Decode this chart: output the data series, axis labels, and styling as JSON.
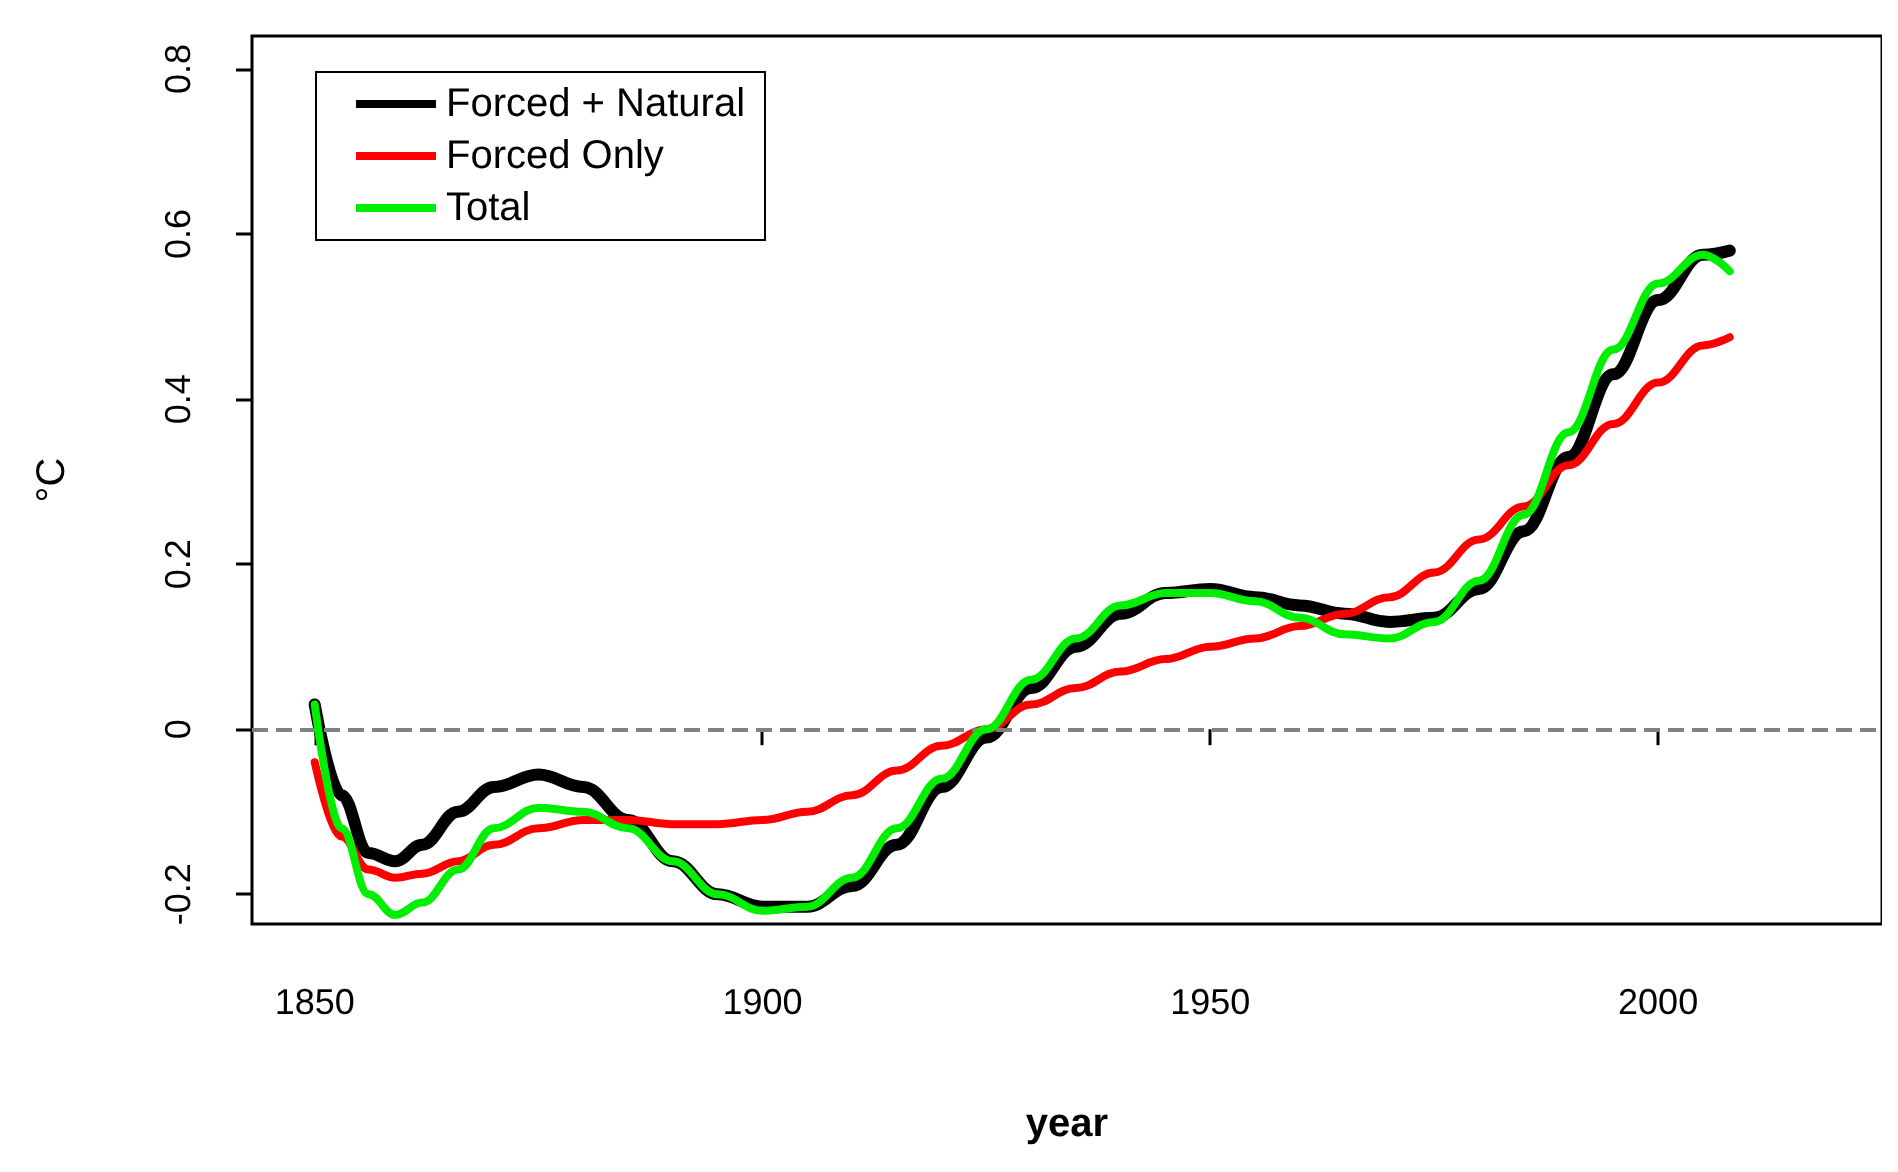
{
  "chart_data": {
    "type": "line",
    "xlabel": "year",
    "ylabel": "°C",
    "xlim": [
      1843,
      2025
    ],
    "xticks": [
      1850,
      1900,
      1950,
      2000
    ],
    "ylim": [
      -0.236,
      0.84
    ],
    "yticks": [
      -0.2,
      0,
      0.2,
      0.4,
      0.6,
      0.8
    ],
    "grid": false,
    "legend": "top left",
    "marker": "none",
    "line_style": "solid",
    "x": [
      1850,
      1853,
      1856,
      1859,
      1862,
      1866,
      1870,
      1875,
      1880,
      1885,
      1890,
      1895,
      1900,
      1905,
      1910,
      1915,
      1920,
      1925,
      1930,
      1935,
      1940,
      1945,
      1950,
      1955,
      1960,
      1965,
      1970,
      1975,
      1980,
      1985,
      1990,
      1995,
      2000,
      2005,
      2008
    ],
    "series": [
      {
        "name": "Forced + Natural",
        "color": "#000000",
        "values": [
          0.03,
          -0.08,
          -0.15,
          -0.16,
          -0.14,
          -0.1,
          -0.07,
          -0.055,
          -0.07,
          -0.11,
          -0.16,
          -0.2,
          -0.215,
          -0.215,
          -0.19,
          -0.14,
          -0.07,
          -0.01,
          0.05,
          0.1,
          0.14,
          0.165,
          0.17,
          0.16,
          0.15,
          0.14,
          0.13,
          0.135,
          0.17,
          0.24,
          0.33,
          0.43,
          0.52,
          0.575,
          0.58
        ]
      },
      {
        "name": "Forced Only",
        "color": "#ff0000",
        "values": [
          -0.04,
          -0.13,
          -0.17,
          -0.18,
          -0.175,
          -0.16,
          -0.14,
          -0.12,
          -0.11,
          -0.11,
          -0.115,
          -0.115,
          -0.11,
          -0.1,
          -0.08,
          -0.05,
          -0.02,
          0.0,
          0.03,
          0.05,
          0.07,
          0.085,
          0.1,
          0.11,
          0.125,
          0.14,
          0.16,
          0.19,
          0.23,
          0.27,
          0.32,
          0.37,
          0.42,
          0.465,
          0.475
        ]
      },
      {
        "name": "Total",
        "color": "#00ee00",
        "values": [
          0.03,
          -0.12,
          -0.2,
          -0.225,
          -0.21,
          -0.17,
          -0.12,
          -0.095,
          -0.1,
          -0.12,
          -0.16,
          -0.2,
          -0.22,
          -0.215,
          -0.18,
          -0.12,
          -0.06,
          0.0,
          0.06,
          0.11,
          0.15,
          0.165,
          0.165,
          0.155,
          0.135,
          0.115,
          0.11,
          0.13,
          0.18,
          0.26,
          0.36,
          0.46,
          0.54,
          0.575,
          0.555
        ]
      }
    ],
    "ref_lines": [
      {
        "axis": "y",
        "value": 0,
        "label": null,
        "color": "#808080",
        "line_style": "dashed"
      }
    ]
  }
}
